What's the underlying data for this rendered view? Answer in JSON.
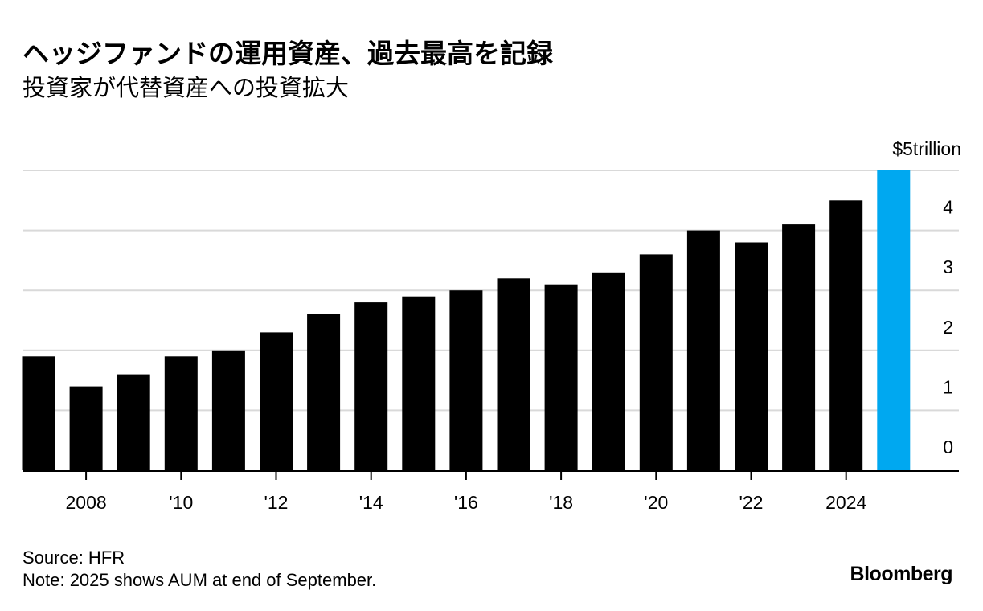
{
  "header": {
    "title": "ヘッジファンドの運用資産、過去最高を記録",
    "subtitle": "投資家が代替資産への投資拡大"
  },
  "footer": {
    "source": "Source: HFR",
    "note": "Note: 2025 shows AUM at end of September.",
    "brand": "Bloomberg"
  },
  "colors": {
    "bar": "#000000",
    "highlight": "#00a8f0",
    "grid": "#d9d9d9",
    "axis": "#000000"
  },
  "chart_data": {
    "type": "bar",
    "title": "ヘッジファンドの運用資産、過去最高を記録",
    "subtitle": "投資家が代替資産への投資拡大",
    "xlabel": "",
    "ylabel": "",
    "unit": "$ trillion",
    "ylim": [
      0,
      5
    ],
    "grid": true,
    "categories": [
      "2007",
      "2008",
      "2009",
      "2010",
      "2011",
      "2012",
      "2013",
      "2014",
      "2015",
      "2016",
      "2017",
      "2018",
      "2019",
      "2020",
      "2021",
      "2022",
      "2023",
      "2024",
      "2025"
    ],
    "values": [
      1.9,
      1.4,
      1.6,
      1.9,
      2.0,
      2.3,
      2.6,
      2.8,
      2.9,
      3.0,
      3.2,
      3.1,
      3.3,
      3.6,
      4.0,
      3.8,
      4.1,
      4.5,
      5.0
    ],
    "highlight_index": 18,
    "yticks": [
      {
        "value": 0,
        "label": "0"
      },
      {
        "value": 1,
        "label": "1"
      },
      {
        "value": 2,
        "label": "2"
      },
      {
        "value": 3,
        "label": "3"
      },
      {
        "value": 4,
        "label": "4"
      },
      {
        "value": 5,
        "label": "$5trillion"
      }
    ],
    "xticks": [
      {
        "category": "2008",
        "label": "2008"
      },
      {
        "category": "2010",
        "label": "'10"
      },
      {
        "category": "2012",
        "label": "'12"
      },
      {
        "category": "2014",
        "label": "'14"
      },
      {
        "category": "2016",
        "label": "'16"
      },
      {
        "category": "2018",
        "label": "'18"
      },
      {
        "category": "2020",
        "label": "'20"
      },
      {
        "category": "2022",
        "label": "'22"
      },
      {
        "category": "2024",
        "label": "2024"
      }
    ]
  }
}
